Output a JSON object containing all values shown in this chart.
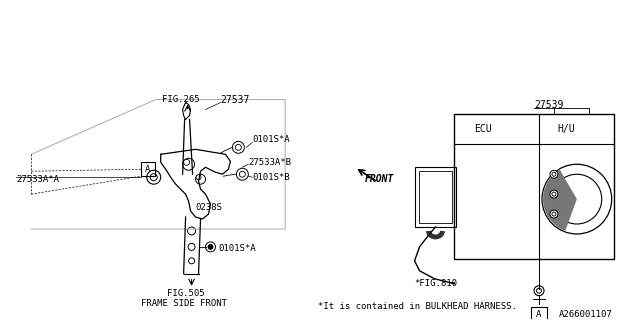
{
  "bg_color": "#ffffff",
  "line_color": "#000000",
  "text_color": "#000000",
  "part_number_27537": "27537",
  "part_number_27539": "27539",
  "part_number_27533A_A": "27533A*A",
  "part_number_27533A_B": "27533A*B",
  "part_number_0101S_A1": "0101S*A",
  "part_number_0101S_B": "0101S*B",
  "part_number_0101S_A2": "0101S*A",
  "part_number_0238S": "0238S",
  "fig265": "FIG.265",
  "fig505": "FIG.505",
  "fig505_sub": "FRAME SIDE FRONT",
  "fig810": "*FIG.810",
  "front_label": "FRONT",
  "ecu_label": "ECU",
  "hu_label": "H/U",
  "note_text": "*It is contained in BULKHEAD HARNESS.",
  "diagram_id": "A266001107",
  "label_A": "A"
}
